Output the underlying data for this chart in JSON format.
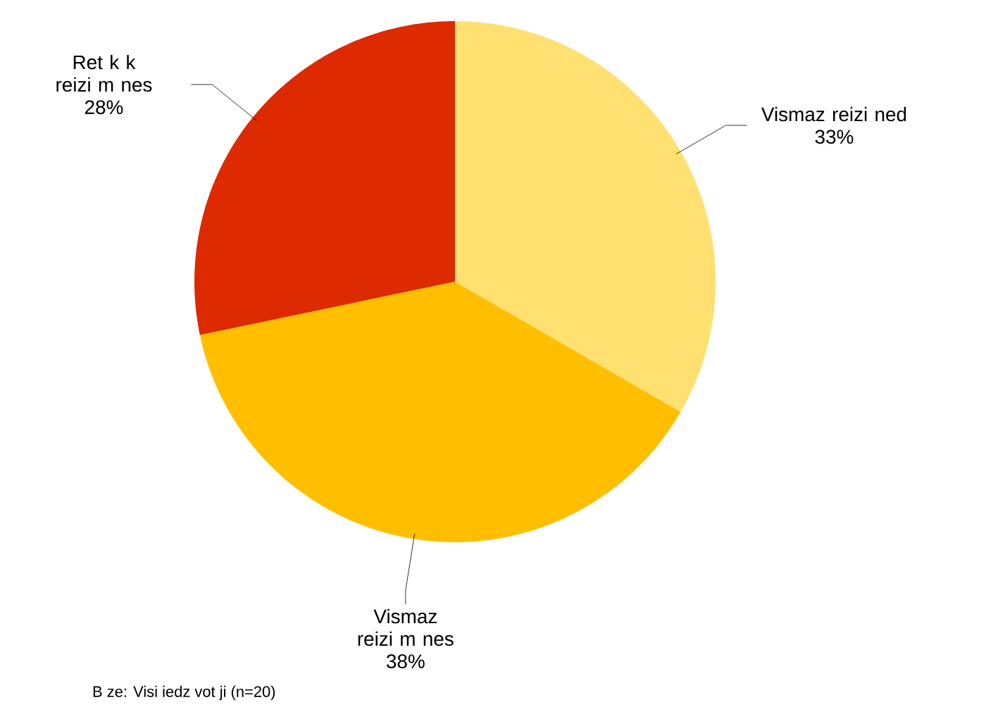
{
  "chart_data": {
    "type": "pie",
    "categories": [
      "Vismaz reizi ned",
      "Vismaz reizi m nes",
      "Ret k k  reizi m nes"
    ],
    "values": [
      33,
      38,
      28
    ],
    "value_labels": [
      "33%",
      "38%",
      "28%"
    ],
    "colors": [
      "#ffe070",
      "#ffbf00",
      "#dd2a00"
    ],
    "annotations": [
      "B ze: Visi iedz vot ji (n=20)"
    ]
  }
}
